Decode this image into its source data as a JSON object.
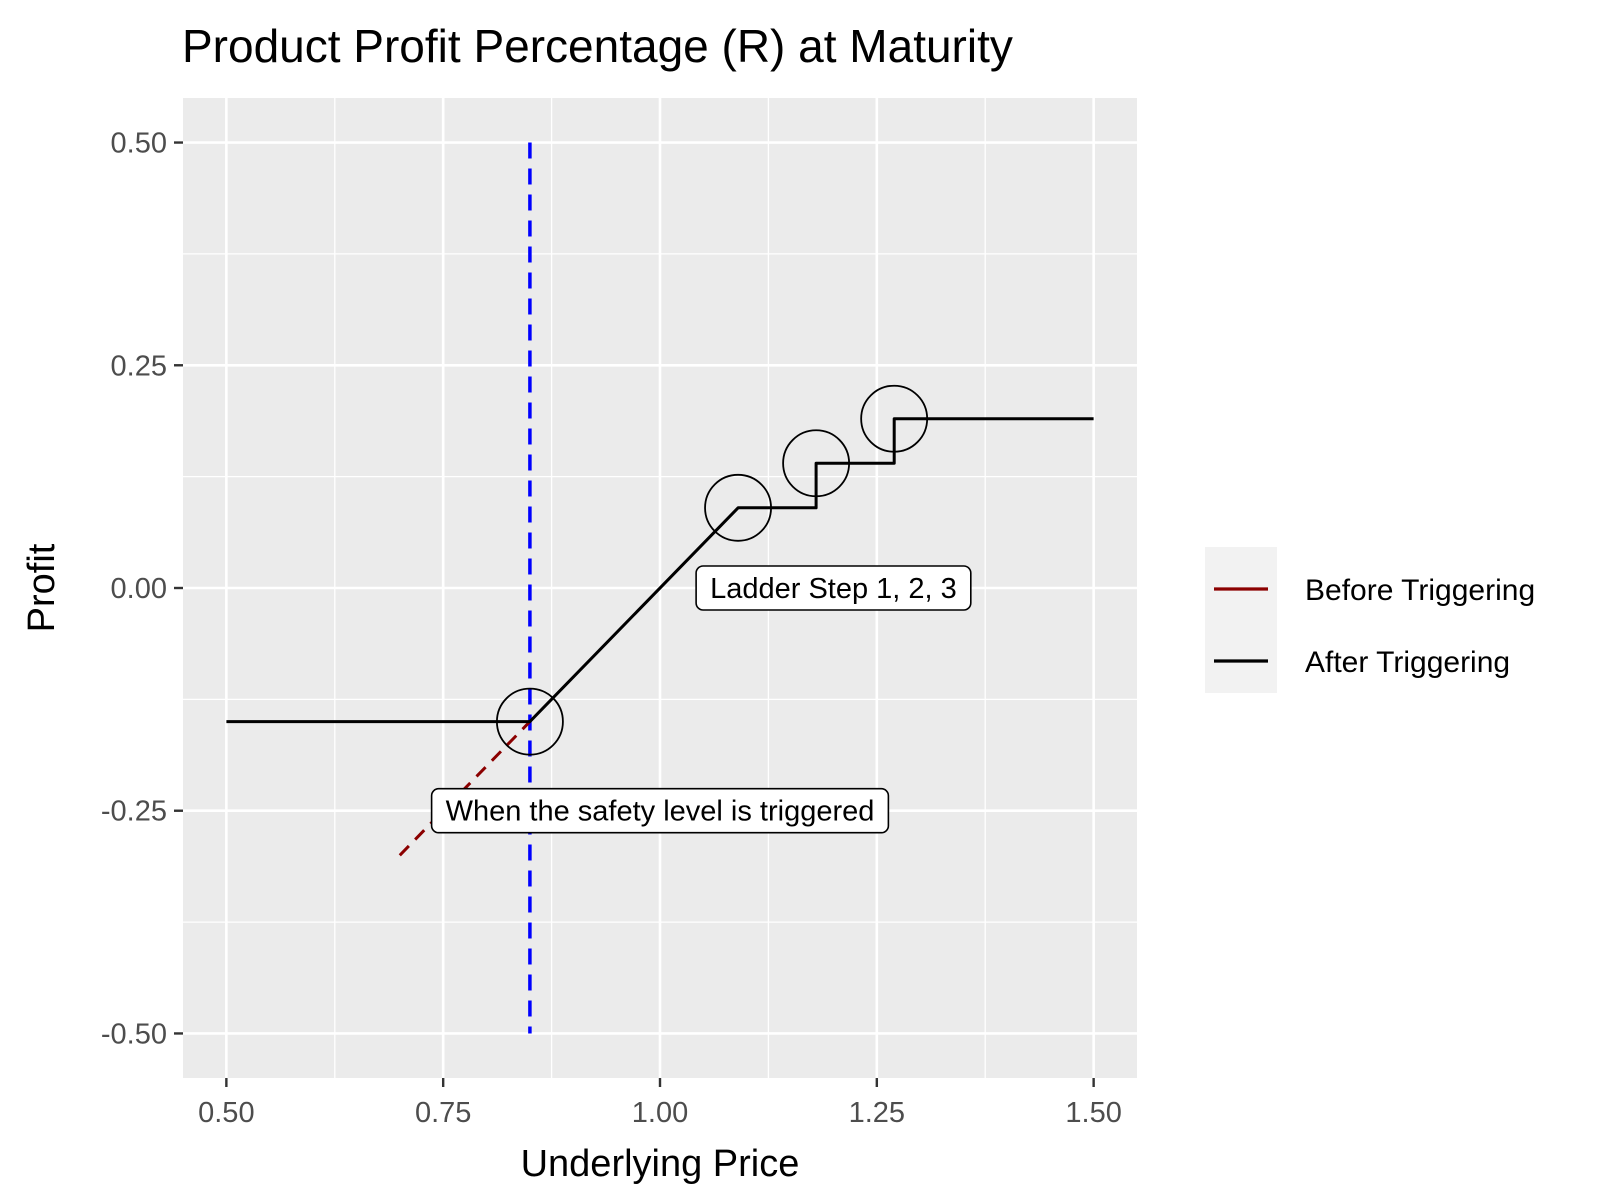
{
  "chart_data": {
    "type": "line",
    "title": "Product Profit Percentage (R) at Maturity",
    "xlabel": "Underlying Price",
    "ylabel": "Profit",
    "xlim": [
      0.45,
      1.55
    ],
    "ylim": [
      -0.55,
      0.55
    ],
    "x_ticks": [
      0.5,
      0.75,
      1.0,
      1.25,
      1.5
    ],
    "x_tick_labels": [
      "0.50",
      "0.75",
      "1.00",
      "1.25",
      "1.50"
    ],
    "y_ticks": [
      -0.5,
      -0.25,
      0.0,
      0.25,
      0.5
    ],
    "y_tick_labels": [
      "-0.50",
      "-0.25",
      "0.00",
      "0.25",
      "0.50"
    ],
    "grid": true,
    "legend_position": "right",
    "series": [
      {
        "name": "Before Triggering",
        "color": "#8B0000",
        "style": "dashed",
        "points": [
          [
            0.7,
            -0.3
          ],
          [
            0.85,
            -0.15
          ]
        ]
      },
      {
        "name": "After Triggering",
        "color": "#000000",
        "style": "solid",
        "points": [
          [
            0.5,
            -0.15
          ],
          [
            0.85,
            -0.15
          ],
          [
            1.09,
            0.09
          ],
          [
            1.18,
            0.09
          ],
          [
            1.18,
            0.14
          ],
          [
            1.27,
            0.14
          ],
          [
            1.27,
            0.19
          ],
          [
            1.5,
            0.19
          ]
        ]
      }
    ],
    "reference_line": {
      "axis": "x",
      "value": 0.85,
      "y_range": [
        -0.5,
        0.5
      ],
      "color": "#0000FF",
      "style": "dashed"
    },
    "circles": [
      {
        "x": 0.85,
        "y": -0.15
      },
      {
        "x": 1.09,
        "y": 0.09
      },
      {
        "x": 1.18,
        "y": 0.14
      },
      {
        "x": 1.27,
        "y": 0.19
      }
    ],
    "annotations": [
      {
        "text": "Ladder Step 1, 2, 3",
        "x": 1.2,
        "y": 0.0
      },
      {
        "text": "When the safety level is triggered",
        "x": 1.0,
        "y": -0.25
      }
    ]
  }
}
